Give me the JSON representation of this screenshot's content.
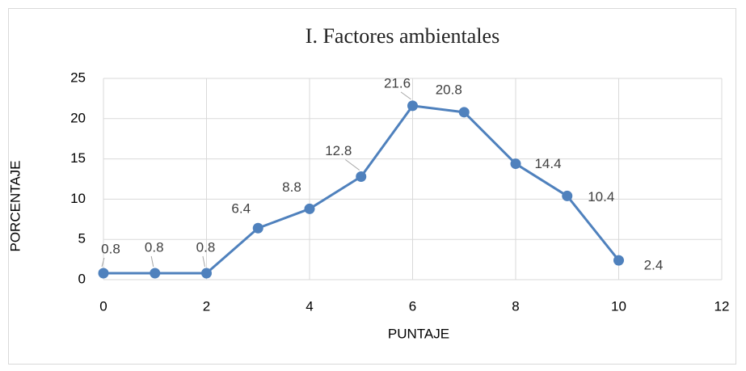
{
  "chart_data": {
    "type": "line",
    "title": "I. Factores ambientales",
    "x_label": "PUNTAJE",
    "y_label": "PORCENTAJE",
    "x": [
      0,
      1,
      2,
      3,
      4,
      5,
      6,
      7,
      8,
      9,
      10
    ],
    "series": [
      {
        "name": "PORCENTAJE",
        "color": "#4f81bd",
        "values": [
          0.8,
          0.8,
          0.8,
          6.4,
          8.8,
          12.8,
          21.6,
          20.8,
          14.4,
          10.4,
          2.4
        ]
      }
    ],
    "xlim": [
      0,
      12
    ],
    "xticks": [
      0,
      2,
      4,
      6,
      8,
      10,
      12
    ],
    "ylim": [
      0,
      25
    ],
    "yticks": [
      0,
      5,
      10,
      15,
      20,
      25
    ],
    "grid": true
  }
}
